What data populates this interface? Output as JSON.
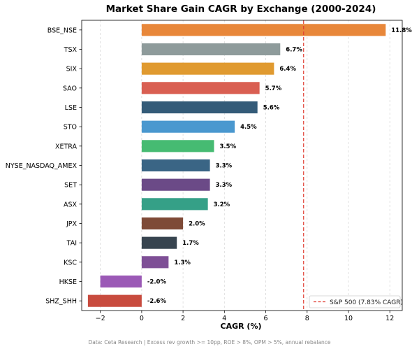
{
  "chart_data": {
    "type": "bar",
    "orientation": "horizontal",
    "title": "Market Share Gain CAGR by Exchange (2000-2024)",
    "xlabel": "CAGR (%)",
    "ylabel": "",
    "xlim": [
      -2.9,
      12.6
    ],
    "xticks": [
      -2,
      0,
      2,
      4,
      6,
      8,
      10,
      12
    ],
    "xtick_labels": [
      "−2",
      "0",
      "2",
      "4",
      "6",
      "8",
      "10",
      "12"
    ],
    "grid": "vertical dashed",
    "categories": [
      "BSE_NSE",
      "TSX",
      "SIX",
      "SAO",
      "LSE",
      "STO",
      "XETRA",
      "NYSE_NASDAQ_AMEX",
      "SET",
      "ASX",
      "JPX",
      "TAI",
      "KSC",
      "HKSE",
      "SHZ_SHH"
    ],
    "values": [
      11.8,
      6.7,
      6.4,
      5.7,
      5.6,
      4.5,
      3.5,
      3.3,
      3.3,
      3.2,
      2.0,
      1.7,
      1.3,
      -2.0,
      -2.6
    ],
    "value_labels": [
      "11.8%",
      "6.7%",
      "6.4%",
      "5.7%",
      "5.6%",
      "4.5%",
      "3.5%",
      "3.3%",
      "3.3%",
      "3.2%",
      "2.0%",
      "1.7%",
      "1.3%",
      "-2.0%",
      "-2.6%"
    ],
    "colors": [
      "#e8873a",
      "#8e9b9b",
      "#e09a30",
      "#d95f52",
      "#345b78",
      "#4a98cf",
      "#46bb72",
      "#3a6585",
      "#6b4a87",
      "#35a087",
      "#7e4a37",
      "#37444f",
      "#7e4f96",
      "#9b59b6",
      "#c84b3e"
    ],
    "reference_line": {
      "value": 7.83,
      "label": "S&P 500 (7.83% CAGR)",
      "color": "#e03c31",
      "style": "dashed"
    },
    "legend_position": "bottom-right"
  },
  "footer": "Data: Ceta Research | Excess rev growth >= 10pp, ROE > 8%, OPM > 5%, annual rebalance"
}
